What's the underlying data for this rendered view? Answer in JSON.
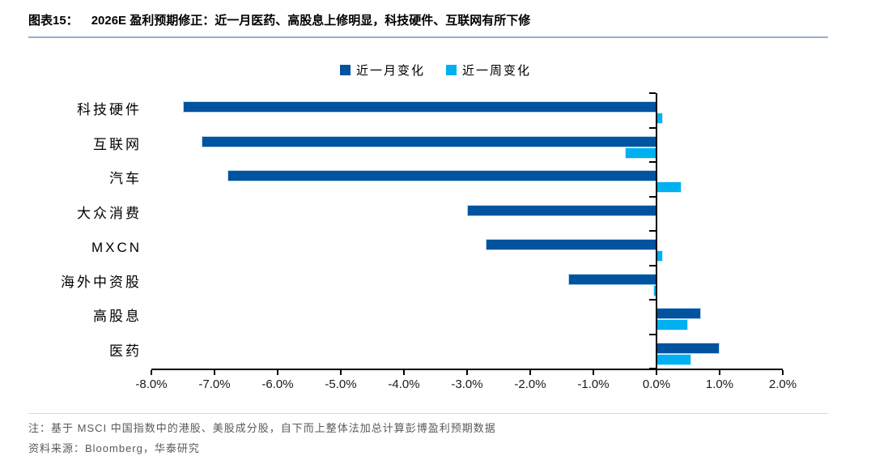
{
  "header": {
    "figure_label": "图表15：",
    "title": "2026E 盈利预期修正：近一月医药、高股息上修明显，科技硬件、互联网有所下修"
  },
  "legend": [
    {
      "label": "近一月变化",
      "color": "#00539F"
    },
    {
      "label": "近一周变化",
      "color": "#00B0F0"
    }
  ],
  "chart_data": {
    "type": "bar",
    "orientation": "horizontal",
    "title": "2026E 盈利预期修正：近一月医药、高股息上修明显，科技硬件、互联网有所下修",
    "categories": [
      "科技硬件",
      "互联网",
      "汽车",
      "大众消费",
      "MXCN",
      "海外中资股",
      "高股息",
      "医药"
    ],
    "series": [
      {
        "name": "近一月变化",
        "color": "#00539F",
        "values": [
          -7.5,
          -7.2,
          -6.8,
          -3.0,
          -2.7,
          -1.4,
          0.7,
          1.0
        ]
      },
      {
        "name": "近一周变化",
        "color": "#00B0F0",
        "values": [
          0.1,
          -0.5,
          0.4,
          0.0,
          0.1,
          -0.05,
          0.5,
          0.55
        ]
      }
    ],
    "value_unit": "%",
    "xlim": [
      -8,
      2
    ],
    "xtick_labels": [
      "-8.0%",
      "-7.0%",
      "-6.0%",
      "-5.0%",
      "-4.0%",
      "-3.0%",
      "-2.0%",
      "-1.0%",
      "0.0%",
      "1.0%",
      "2.0%"
    ],
    "legend_position": "top-center",
    "grid": false
  },
  "notes": {
    "note": "注：基于 MSCI 中国指数中的港股、美股成分股，自下而上整体法加总计算彭博盈利预期数据",
    "source": "资料来源：Bloomberg，华泰研究"
  },
  "colors": {
    "series1": "#00539F",
    "series2": "#00B0F0",
    "title_underline": "#94AECE",
    "note_divider": "#D8D8D8",
    "axis": "#000000",
    "note_text": "#5A5A5A"
  }
}
